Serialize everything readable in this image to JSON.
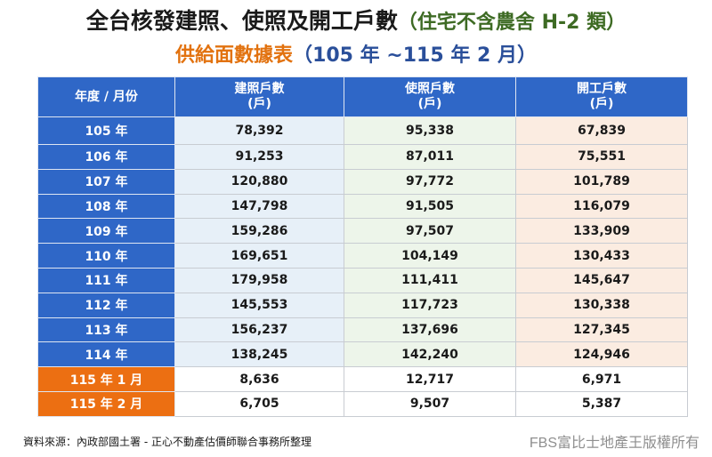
{
  "title": {
    "main": "全台核發建照、使照及開工戶數",
    "paren": "（住宅不含農舍 H-2 類）",
    "line2_prefix": "供給面數據表",
    "line2_range": "（105 年 ~115 年 2 月）"
  },
  "chart_data": {
    "type": "table",
    "columns": [
      {
        "label": "年度 / 月份",
        "unit": ""
      },
      {
        "label": "建照戶數",
        "unit": "(戶)"
      },
      {
        "label": "使照戶數",
        "unit": "(戶)"
      },
      {
        "label": "開工戶數",
        "unit": "(戶)"
      }
    ],
    "rows": [
      {
        "label": "105 年",
        "values": [
          "78,392",
          "95,338",
          "67,839"
        ]
      },
      {
        "label": "106 年",
        "values": [
          "91,253",
          "87,011",
          "75,551"
        ]
      },
      {
        "label": "107 年",
        "values": [
          "120,880",
          "97,772",
          "101,789"
        ]
      },
      {
        "label": "108 年",
        "values": [
          "147,798",
          "91,505",
          "116,079"
        ]
      },
      {
        "label": "109 年",
        "values": [
          "159,286",
          "97,507",
          "133,909"
        ]
      },
      {
        "label": "110 年",
        "values": [
          "169,651",
          "104,149",
          "130,433"
        ]
      },
      {
        "label": "111 年",
        "values": [
          "179,958",
          "111,411",
          "145,647"
        ]
      },
      {
        "label": "112 年",
        "values": [
          "145,553",
          "117,723",
          "130,338"
        ]
      },
      {
        "label": "113 年",
        "values": [
          "156,237",
          "137,696",
          "127,345"
        ]
      },
      {
        "label": "114 年",
        "values": [
          "138,245",
          "142,240",
          "124,946"
        ]
      },
      {
        "label": "115 年 1 月",
        "values": [
          "8,636",
          "12,717",
          "6,971"
        ],
        "highlight": true
      },
      {
        "label": "115 年 2 月",
        "values": [
          "6,705",
          "9,507",
          "5,387"
        ],
        "highlight": true
      }
    ]
  },
  "colors": {
    "header_blue": "#2f67c7",
    "highlight_orange": "#ec6f12",
    "title_green": "#3e6b24",
    "title_orange": "#e2720f",
    "title_blue": "#2a4f9a"
  },
  "footer": {
    "source": "資料來源：內政部國土署 - 正心不動產估價師聯合事務所整理",
    "watermark": "FBS富比士地產王版權所有"
  }
}
